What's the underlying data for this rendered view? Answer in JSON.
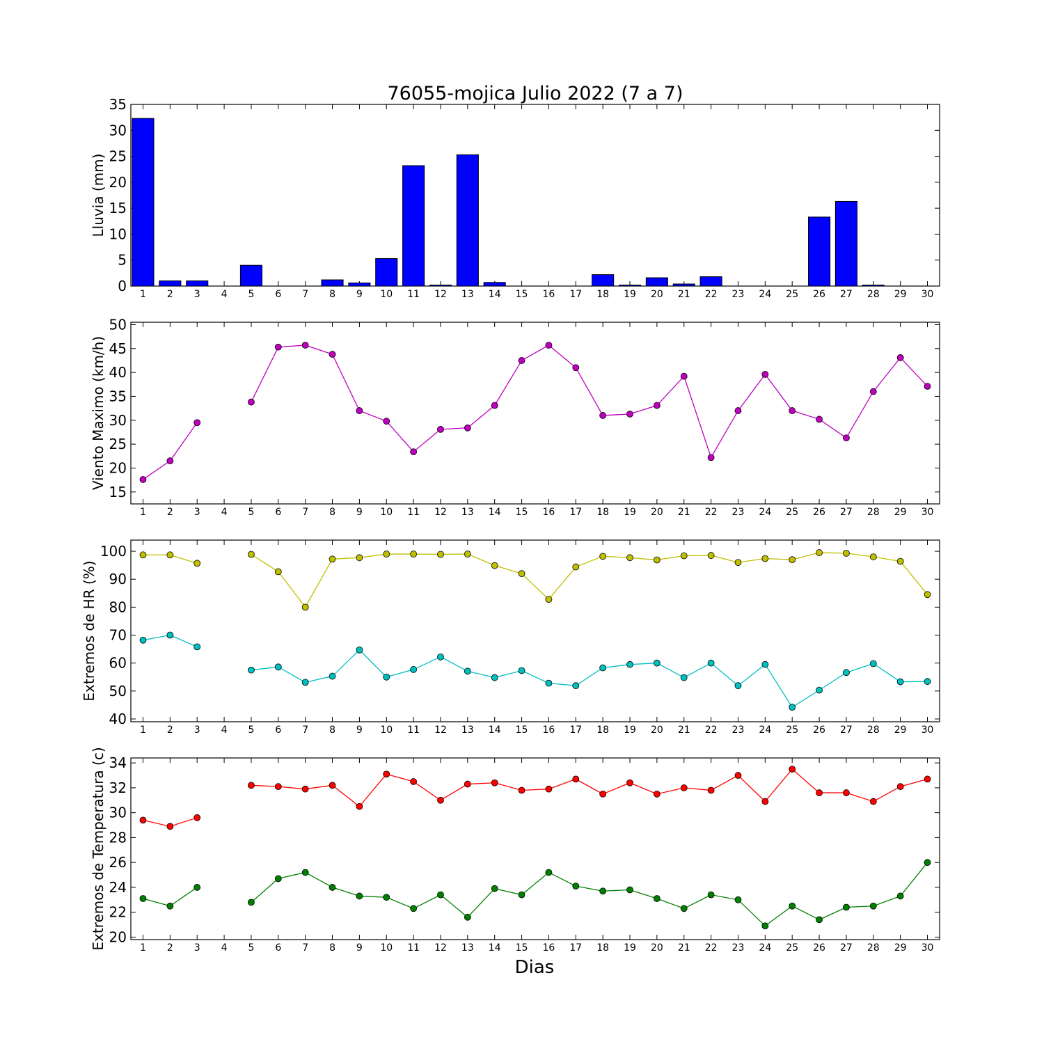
{
  "figure": {
    "title": "76055-mojica Julio 2022  (7 a 7)",
    "xlabel": "Dias"
  },
  "chart_data": [
    {
      "type": "bar",
      "ylabel": "Lluvia (mm)",
      "x": [
        1,
        2,
        3,
        4,
        5,
        6,
        7,
        8,
        9,
        10,
        11,
        12,
        13,
        14,
        15,
        16,
        17,
        18,
        19,
        20,
        21,
        22,
        23,
        24,
        25,
        26,
        27,
        28,
        29,
        30
      ],
      "ylim": [
        0,
        35
      ],
      "yticks": [
        0,
        5,
        10,
        15,
        20,
        25,
        30,
        35
      ],
      "series": [
        {
          "color": "#0000ff",
          "values": [
            32.3,
            1.0,
            1.0,
            0,
            4.0,
            0,
            0,
            1.2,
            0.6,
            5.3,
            23.2,
            0.2,
            25.3,
            0.7,
            0,
            0,
            0,
            2.2,
            0.2,
            1.6,
            0.4,
            1.8,
            0,
            0,
            0,
            13.3,
            16.3,
            0.2,
            0,
            0
          ]
        }
      ]
    },
    {
      "type": "line",
      "ylabel": "Viento Maximo (km/h)",
      "x": [
        1,
        2,
        3,
        4,
        5,
        6,
        7,
        8,
        9,
        10,
        11,
        12,
        13,
        14,
        15,
        16,
        17,
        18,
        19,
        20,
        21,
        22,
        23,
        24,
        25,
        26,
        27,
        28,
        29,
        30
      ],
      "ylim": [
        12.5,
        50.5
      ],
      "yticks": [
        15,
        20,
        25,
        30,
        35,
        40,
        45,
        50
      ],
      "series": [
        {
          "color": "#bf00bf",
          "values": [
            17.6,
            21.5,
            29.5,
            null,
            33.8,
            45.3,
            45.7,
            43.8,
            32.0,
            29.8,
            23.4,
            28.1,
            28.4,
            33.1,
            42.5,
            45.7,
            41.0,
            31.0,
            31.3,
            33.1,
            39.2,
            22.2,
            32.0,
            39.6,
            32.0,
            30.2,
            26.3,
            36.0,
            43.1,
            37.1
          ]
        }
      ]
    },
    {
      "type": "line",
      "ylabel": "Extremos de HR (%)",
      "x": [
        1,
        2,
        3,
        4,
        5,
        6,
        7,
        8,
        9,
        10,
        11,
        12,
        13,
        14,
        15,
        16,
        17,
        18,
        19,
        20,
        21,
        22,
        23,
        24,
        25,
        26,
        27,
        28,
        29,
        30
      ],
      "ylim": [
        39,
        104
      ],
      "yticks": [
        40,
        50,
        60,
        70,
        80,
        90,
        100
      ],
      "series": [
        {
          "color": "#bfbf00",
          "values": [
            98.7,
            98.7,
            95.7,
            null,
            98.9,
            92.7,
            80.0,
            97.2,
            97.7,
            99.0,
            99.0,
            98.9,
            99.0,
            94.9,
            92.0,
            82.8,
            94.4,
            98.2,
            97.7,
            96.9,
            98.4,
            98.5,
            96.0,
            97.4,
            97.0,
            99.5,
            99.3,
            98.0,
            96.4,
            84.5
          ]
        },
        {
          "color": "#00bfbf",
          "values": [
            68.2,
            70.0,
            65.8,
            null,
            57.5,
            58.6,
            53.1,
            55.3,
            64.7,
            55.0,
            57.7,
            62.2,
            57.1,
            54.8,
            57.3,
            52.8,
            51.9,
            58.3,
            59.5,
            60.0,
            54.8,
            60.0,
            51.9,
            59.5,
            44.2,
            50.3,
            56.6,
            59.8,
            53.3,
            53.4
          ]
        }
      ]
    },
    {
      "type": "line",
      "ylabel": "Extremos de Temperatura (c)",
      "x": [
        1,
        2,
        3,
        4,
        5,
        6,
        7,
        8,
        9,
        10,
        11,
        12,
        13,
        14,
        15,
        16,
        17,
        18,
        19,
        20,
        21,
        22,
        23,
        24,
        25,
        26,
        27,
        28,
        29,
        30
      ],
      "ylim": [
        19.8,
        34.4
      ],
      "yticks": [
        20,
        22,
        24,
        26,
        28,
        30,
        32,
        34
      ],
      "series": [
        {
          "color": "#ff0000",
          "values": [
            29.4,
            28.9,
            29.6,
            null,
            32.2,
            32.1,
            31.9,
            32.2,
            30.5,
            33.1,
            32.5,
            31.0,
            32.3,
            32.4,
            31.8,
            31.9,
            32.7,
            31.5,
            32.4,
            31.5,
            32.0,
            31.8,
            33.0,
            30.9,
            33.5,
            31.6,
            31.6,
            30.9,
            32.1,
            32.7
          ]
        },
        {
          "color": "#008000",
          "values": [
            23.1,
            22.5,
            24.0,
            null,
            22.8,
            24.7,
            25.2,
            24.0,
            23.3,
            23.2,
            22.3,
            23.4,
            21.6,
            23.9,
            23.4,
            25.2,
            24.1,
            23.7,
            23.8,
            23.1,
            22.3,
            23.4,
            23.0,
            20.9,
            22.5,
            21.4,
            22.4,
            22.5,
            23.3,
            26.0
          ]
        }
      ]
    }
  ]
}
